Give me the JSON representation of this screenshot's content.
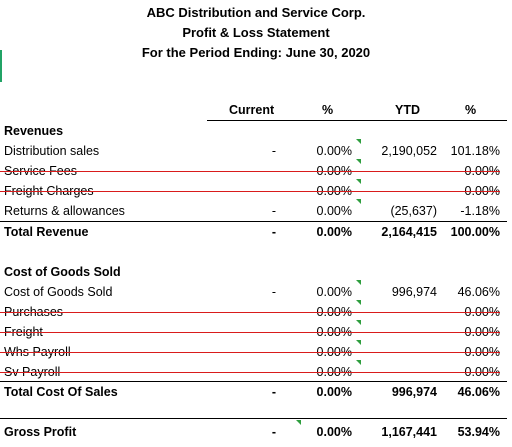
{
  "report": {
    "company": "ABC Distribution and Service Corp.",
    "statement": "Profit & Loss Statement",
    "period": "For the Period Ending: June 30, 2020"
  },
  "columns": {
    "current": "Current",
    "pct": "%",
    "ytd": "YTD",
    "ytd_pct": "%"
  },
  "revenues": {
    "heading": "Revenues",
    "rows": [
      {
        "label": "Distribution sales",
        "current": "-",
        "pct": "0.00%",
        "ytd": "2,190,052",
        "ytd_pct": "101.18%"
      },
      {
        "label": "Service Fees",
        "current": "-",
        "pct": "0.00%",
        "ytd": "-",
        "ytd_pct": "0.00%"
      },
      {
        "label": "Freight Charges",
        "current": "-",
        "pct": "0.00%",
        "ytd": "-",
        "ytd_pct": "0.00%"
      },
      {
        "label": "Returns & allowances",
        "current": "-",
        "pct": "0.00%",
        "ytd": "(25,637)",
        "ytd_pct": "-1.18%"
      }
    ],
    "total": {
      "label": "Total Revenue",
      "current": "-",
      "pct": "0.00%",
      "ytd": "2,164,415",
      "ytd_pct": "100.00%"
    }
  },
  "cogs": {
    "heading": "Cost of Goods Sold",
    "rows": [
      {
        "label": "Cost of Goods Sold",
        "current": "-",
        "pct": "0.00%",
        "ytd": "996,974",
        "ytd_pct": "46.06%"
      },
      {
        "label": "Purchases",
        "current": "-",
        "pct": "0.00%",
        "ytd": "-",
        "ytd_pct": "0.00%"
      },
      {
        "label": "Freight",
        "current": "-",
        "pct": "0.00%",
        "ytd": "-",
        "ytd_pct": "0.00%"
      },
      {
        "label": "Whs Payroll",
        "current": "-",
        "pct": "0.00%",
        "ytd": "-",
        "ytd_pct": "0.00%"
      },
      {
        "label": "Sv Payroll",
        "current": "-",
        "pct": "0.00%",
        "ytd": "-",
        "ytd_pct": "0.00%"
      }
    ],
    "total": {
      "label": "Total Cost Of Sales",
      "current": "-",
      "pct": "0.00%",
      "ytd": "996,974",
      "ytd_pct": "46.06%"
    }
  },
  "gross_profit": {
    "label": "Gross Profit",
    "current": "-",
    "pct": "0.00%",
    "ytd": "1,167,441",
    "ytd_pct": "53.94%"
  },
  "colors": {
    "strike": "#d91b1b",
    "comment_marker": "#2e9e3e"
  }
}
